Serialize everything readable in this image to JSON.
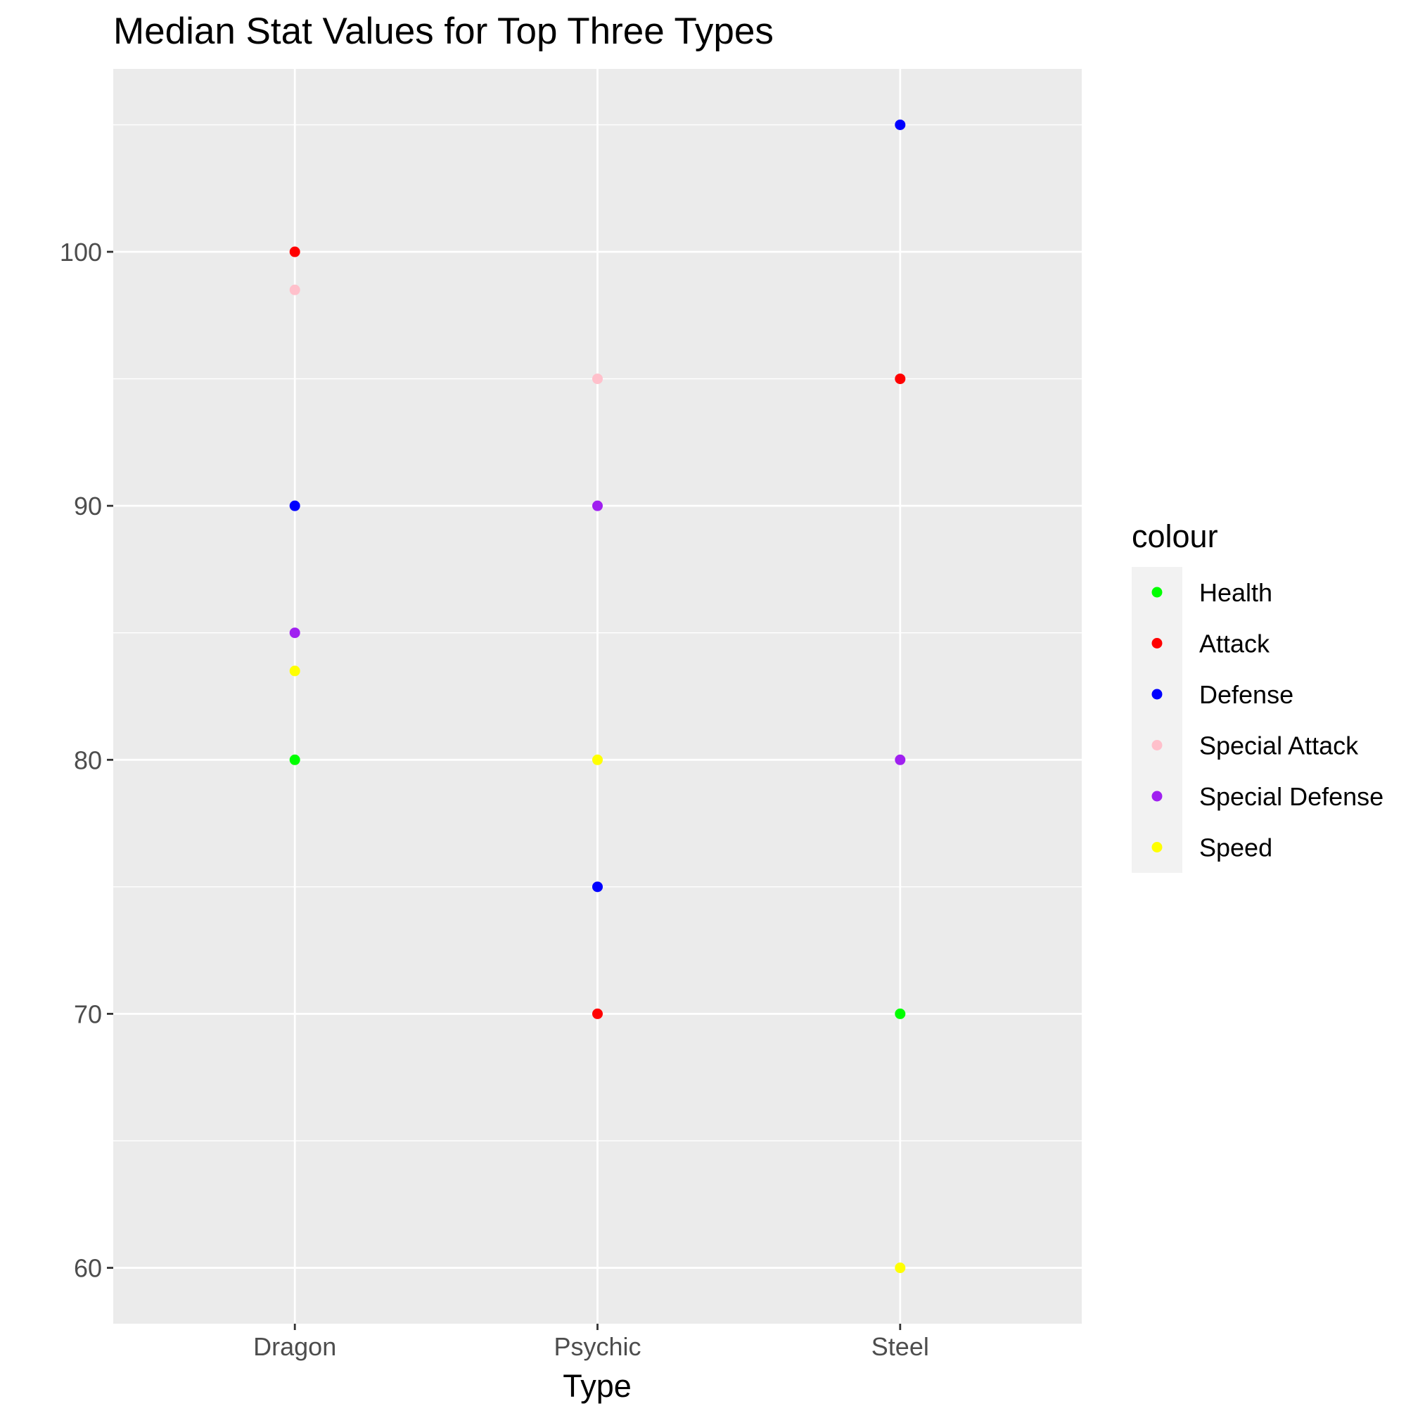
{
  "chart_data": {
    "type": "scatter",
    "title": "Median Stat Values for Top Three Types",
    "xlabel": "Type",
    "ylabel": "",
    "categories": [
      "Dragon",
      "Psychic",
      "Steel"
    ],
    "ylim": [
      57.8,
      107.2
    ],
    "yticks": [
      60,
      70,
      80,
      90,
      100
    ],
    "grid": true,
    "legend": {
      "title": "colour",
      "position": "right"
    },
    "series": [
      {
        "name": "Health",
        "color": "#00ff00",
        "values": [
          80,
          null,
          70
        ]
      },
      {
        "name": "Attack",
        "color": "#ff0000",
        "values": [
          100,
          70,
          95
        ]
      },
      {
        "name": "Defense",
        "color": "#0000ff",
        "values": [
          90,
          75,
          105
        ]
      },
      {
        "name": "Special Attack",
        "color": "#ffc0cb",
        "values": [
          98.5,
          95,
          null
        ]
      },
      {
        "name": "Special Defense",
        "color": "#a020f0",
        "values": [
          85,
          90,
          80
        ]
      },
      {
        "name": "Speed",
        "color": "#ffff00",
        "values": [
          83.5,
          80,
          60
        ]
      }
    ]
  }
}
